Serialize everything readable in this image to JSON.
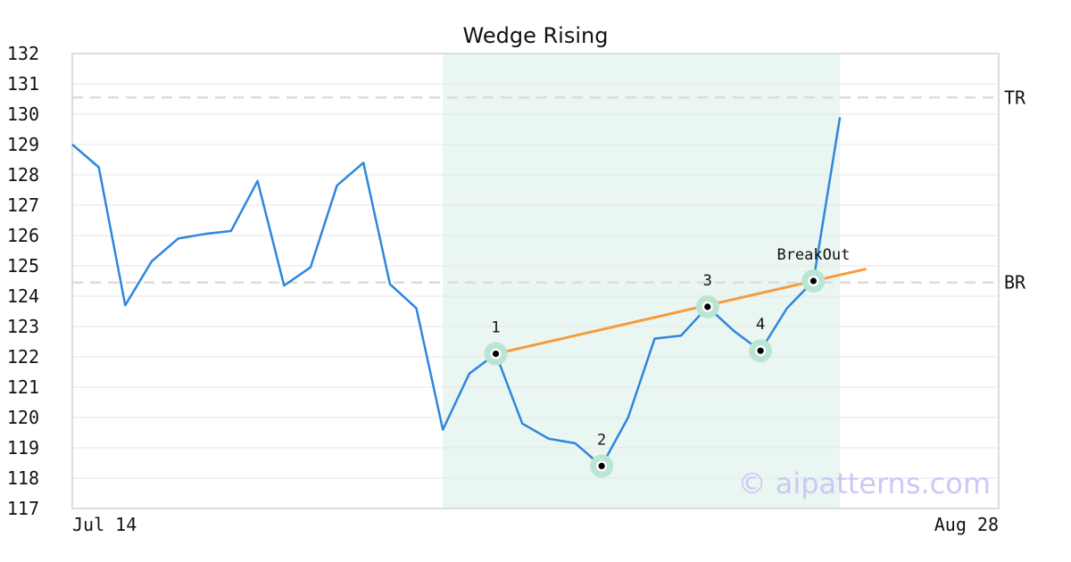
{
  "chart_data": {
    "type": "line",
    "title": "Wedge Rising",
    "xlabel": "",
    "ylabel": "",
    "ylim": [
      117,
      132
    ],
    "yticks": [
      117,
      118,
      119,
      120,
      121,
      122,
      123,
      124,
      125,
      126,
      127,
      128,
      129,
      130,
      131,
      132
    ],
    "x_range": [
      0,
      35
    ],
    "x_tick_labels": [
      {
        "x": 0,
        "label": "Jul 14"
      },
      {
        "x": 35,
        "label": "Aug 28"
      }
    ],
    "grid": true,
    "series": [
      {
        "color": "#2e86de",
        "values": [
          {
            "x": 0,
            "y": 129.0
          },
          {
            "x": 1,
            "y": 128.25
          },
          {
            "x": 2,
            "y": 123.7
          },
          {
            "x": 3,
            "y": 125.15
          },
          {
            "x": 4,
            "y": 125.9
          },
          {
            "x": 5,
            "y": 126.05
          },
          {
            "x": 6,
            "y": 126.15
          },
          {
            "x": 7,
            "y": 127.8
          },
          {
            "x": 8,
            "y": 124.35
          },
          {
            "x": 9,
            "y": 124.95
          },
          {
            "x": 10,
            "y": 127.65
          },
          {
            "x": 11,
            "y": 128.4
          },
          {
            "x": 12,
            "y": 124.4
          },
          {
            "x": 13,
            "y": 123.6
          },
          {
            "x": 14,
            "y": 119.6
          },
          {
            "x": 15,
            "y": 121.45
          },
          {
            "x": 16,
            "y": 122.1
          },
          {
            "x": 17,
            "y": 119.8
          },
          {
            "x": 18,
            "y": 119.3
          },
          {
            "x": 19,
            "y": 119.15
          },
          {
            "x": 20,
            "y": 118.4
          },
          {
            "x": 21,
            "y": 120.0
          },
          {
            "x": 22,
            "y": 122.6
          },
          {
            "x": 23,
            "y": 122.7
          },
          {
            "x": 24,
            "y": 123.65
          },
          {
            "x": 25,
            "y": 122.85
          },
          {
            "x": 26,
            "y": 122.2
          },
          {
            "x": 27,
            "y": 123.6
          },
          {
            "x": 28,
            "y": 124.5
          },
          {
            "x": 29,
            "y": 129.9
          }
        ]
      }
    ],
    "trendline": {
      "color": "#f39c40",
      "from": {
        "x": 16,
        "y": 122.1
      },
      "to": {
        "x": 30,
        "y": 124.9
      }
    },
    "highlight_region": {
      "x_start": 14,
      "x_end": 29,
      "color": "#eaf6f1"
    },
    "levels": [
      {
        "label": "TR",
        "y": 130.55
      },
      {
        "label": "BR",
        "y": 124.45
      }
    ],
    "markers": [
      {
        "label": "1",
        "x": 16,
        "y": 122.1
      },
      {
        "label": "2",
        "x": 20,
        "y": 118.4
      },
      {
        "label": "3",
        "x": 24,
        "y": 123.65
      },
      {
        "label": "4",
        "x": 26,
        "y": 122.2
      },
      {
        "label": "BreakOut",
        "x": 28,
        "y": 124.5
      }
    ],
    "marker_color": "#b9e6d3",
    "watermark": "© aipatterns.com"
  }
}
